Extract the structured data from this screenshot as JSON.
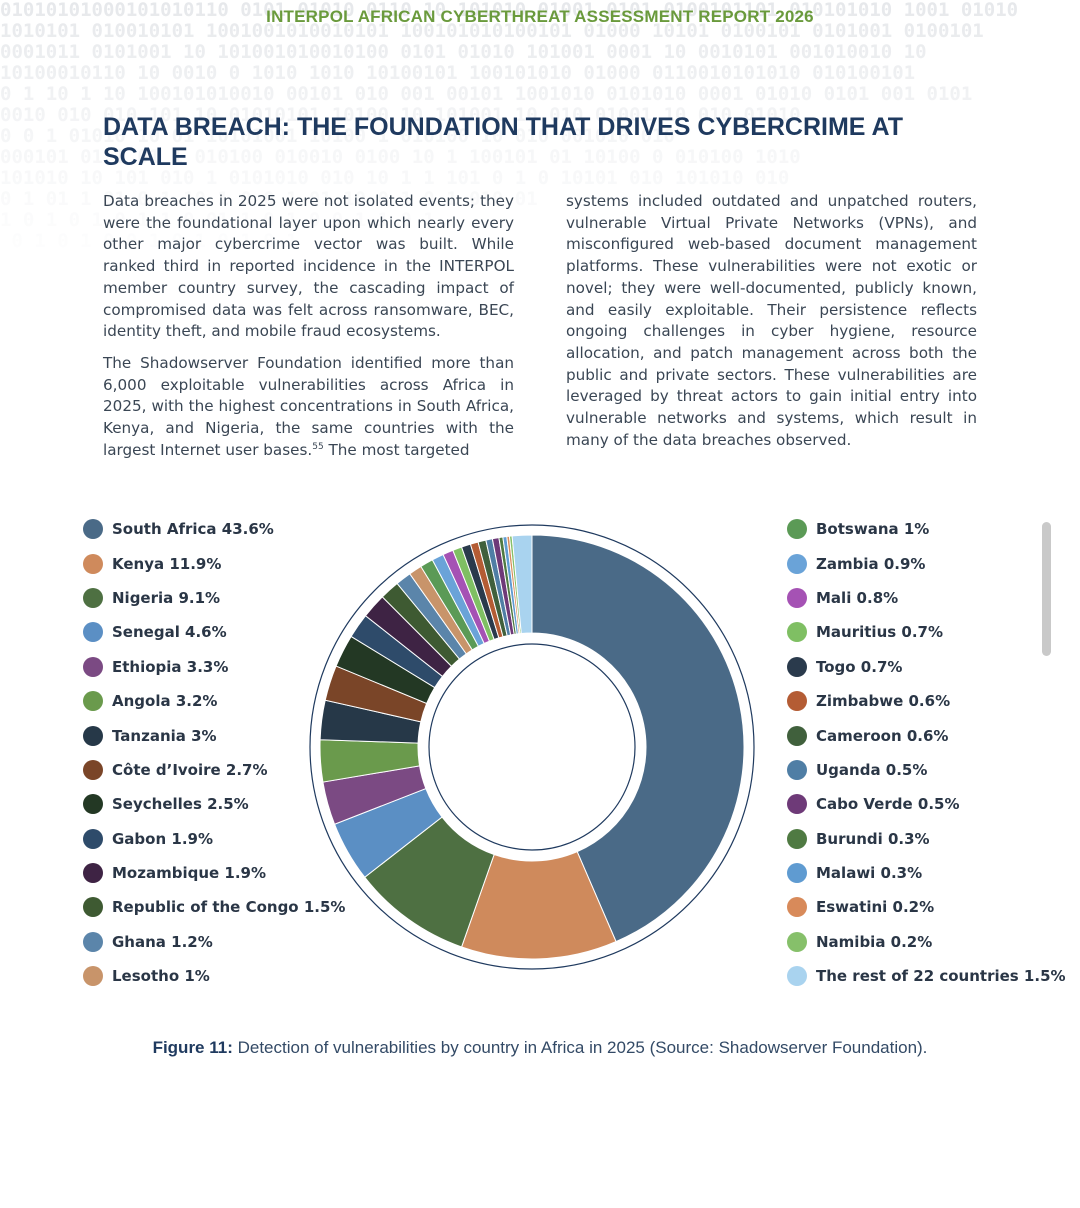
{
  "header": {
    "report_title": "INTERPOL AFRICAN CYBERTHREAT ASSESSMENT REPORT 2026"
  },
  "section": {
    "heading": "DATA BREACH: THE FOUNDATION THAT DRIVES CYBERCRIME AT SCALE"
  },
  "body": {
    "left_p1": "Data breaches in 2025 were not isolated events; they were the foundational layer upon which nearly every other major cybercrime vector was built. While ranked third in reported incidence in the INTERPOL member country survey, the cascading impact of compromised data was felt across ransomware, BEC, identity theft, and mobile fraud ecosystems.",
    "left_p2": "The Shadowserver Foundation identified more than 6,000 exploitable vulnerabilities across Africa in 2025, with the highest concentrations in South Africa, Kenya, and Nigeria, the same countries with the largest Internet user bases.",
    "left_p2_footnote": "55",
    "left_p2_tail": " The most targeted",
    "right_p1": "systems included outdated and unpatched routers, vulnerable Virtual Private Networks (VPNs), and misconfigured web-based document management platforms. These vulnerabilities were not exotic or novel; they were well-documented, publicly known, and easily exploitable. Their persistence reflects ongoing challenges in cyber hygiene, resource allocation, and patch management across both the public and private sectors. These vulnerabilities are leveraged by threat actors to gain initial entry into vulnerable networks and systems, which result in many of the data breaches observed."
  },
  "chart_data": {
    "type": "pie",
    "variant": "donut",
    "title": "",
    "unit": "%",
    "slices": [
      {
        "label": "South Africa 43.6%",
        "value": 43.6,
        "color": "#4a6a87"
      },
      {
        "label": "Kenya 11.9%",
        "value": 11.9,
        "color": "#cf8a5c"
      },
      {
        "label": "Nigeria 9.1%",
        "value": 9.1,
        "color": "#4e7042"
      },
      {
        "label": "Senegal 4.6%",
        "value": 4.6,
        "color": "#5b8fc4"
      },
      {
        "label": "Ethiopia 3.3%",
        "value": 3.3,
        "color": "#7b4a83"
      },
      {
        "label": "Angola 3.2%",
        "value": 3.2,
        "color": "#6a9a4c"
      },
      {
        "label": "Tanzania 3%",
        "value": 3.0,
        "color": "#263848"
      },
      {
        "label": "Côte d’Ivoire 2.7%",
        "value": 2.7,
        "color": "#7a4528"
      },
      {
        "label": "Seychelles 2.5%",
        "value": 2.5,
        "color": "#233824"
      },
      {
        "label": "Gabon 1.9%",
        "value": 1.9,
        "color": "#2e4b6a"
      },
      {
        "label": "Mozambique 1.9%",
        "value": 1.9,
        "color": "#3e2344"
      },
      {
        "label": "Republic of the Congo 1.5%",
        "value": 1.5,
        "color": "#3e5a32"
      },
      {
        "label": "Ghana 1.2%",
        "value": 1.2,
        "color": "#5b85aa"
      },
      {
        "label": "Lesotho 1%",
        "value": 1.0,
        "color": "#c8946a"
      },
      {
        "label": "Botswana 1%",
        "value": 1.0,
        "color": "#5b9a56"
      },
      {
        "label": "Zambia 0.9%",
        "value": 0.9,
        "color": "#6aa3d8"
      },
      {
        "label": "Mali 0.8%",
        "value": 0.8,
        "color": "#a552b4"
      },
      {
        "label": "Mauritius 0.7%",
        "value": 0.7,
        "color": "#7fbf63"
      },
      {
        "label": "Togo 0.7%",
        "value": 0.7,
        "color": "#2a3a4c"
      },
      {
        "label": "Zimbabwe 0.6%",
        "value": 0.6,
        "color": "#b45c34"
      },
      {
        "label": "Cameroon 0.6%",
        "value": 0.6,
        "color": "#40603c"
      },
      {
        "label": "Uganda 0.5%",
        "value": 0.5,
        "color": "#4f7ea5"
      },
      {
        "label": "Cabo Verde 0.5%",
        "value": 0.5,
        "color": "#6e3a78"
      },
      {
        "label": "Burundi 0.3%",
        "value": 0.3,
        "color": "#4f7a42"
      },
      {
        "label": "Malawi 0.3%",
        "value": 0.3,
        "color": "#5f9bd1"
      },
      {
        "label": "Eswatini 0.2%",
        "value": 0.2,
        "color": "#d88a5a"
      },
      {
        "label": "Namibia 0.2%",
        "value": 0.2,
        "color": "#86c06a"
      },
      {
        "label": "The rest of 22 countries 1.5%",
        "value": 1.5,
        "color": "#a9d3ef"
      }
    ]
  },
  "figure": {
    "caption_label": "Figure 11:",
    "caption_text": " Detection of vulnerabilities by country in Africa in 2025 (Source: Shadowserver Foundation)."
  }
}
